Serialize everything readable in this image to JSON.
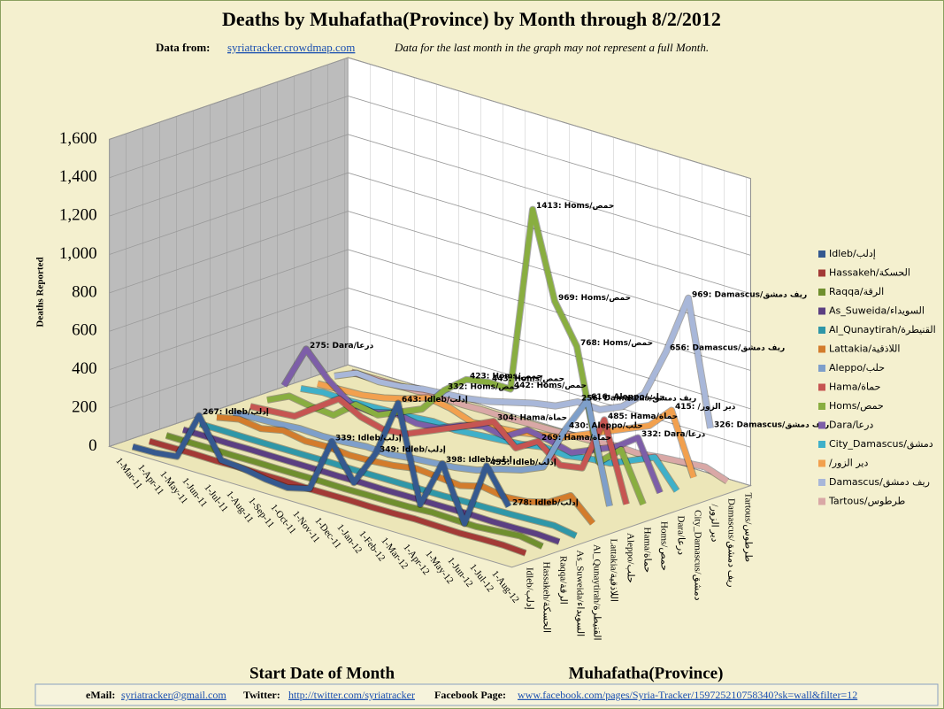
{
  "chart_data": {
    "type": "line3d",
    "title": "Deaths by Muhafatha(Province) by Month through 8/2/2012",
    "source_label": "Data from:",
    "source_link": "syriatracker.crowdmap.com",
    "subtitle": "Data for the last month  in the graph may not represent a full Month.",
    "y_label": "Deaths Reported",
    "x_label": "Start Date of Month",
    "z_label": "Muhafatha(Province)",
    "footer": {
      "email_label": "eMail:",
      "email": "syriatracker@gmail.com",
      "twitter_label": "Twitter:",
      "twitter": "http://twitter.com/syriatracker",
      "facebook_label": "Facebook  Page:",
      "facebook": "www.facebook.com/pages/Syria-Tracker/159725210758340?sk=wall&filter=12"
    },
    "ylim": [
      0,
      1600
    ],
    "yticks": [
      0,
      200,
      400,
      600,
      800,
      {
        "value": 1000,
        "label": "1,000"
      },
      {
        "value": 1200,
        "label": "1,200"
      },
      {
        "value": 1400,
        "label": "1,400"
      },
      {
        "value": 1600,
        "label": "1,600"
      }
    ],
    "grid": true,
    "categories": [
      "1-Mar-11",
      "1-Apr-11",
      "1-May-11",
      "1-Jun-11",
      "1-Jul-11",
      "1-Aug-11",
      "1-Sep-11",
      "1-Oct-11",
      "1-Nov-11",
      "1-Dec-11",
      "1-Jan-12",
      "1-Feb-12",
      "1-Mar-12",
      "1-Apr-12",
      "1-May-12",
      "1-Jun-12",
      "1-Jul-12",
      "1-Aug-12"
    ],
    "series": [
      {
        "name": "Idleb/إدلب",
        "color": "#35598f",
        "values": [
          2,
          5,
          20,
          267,
          70,
          60,
          40,
          30,
          60,
          339,
          160,
          349,
          643,
          150,
          398,
          120,
          455,
          278
        ],
        "value_labels": [
          null,
          null,
          null,
          "267: Idleb/إدلب",
          null,
          null,
          null,
          null,
          null,
          "339: Idleb/إدلب",
          null,
          "349: Idleb/إدلب",
          "643: Idleb/إدلب",
          null,
          "398: Idleb/إدلب",
          null,
          "455: Idleb/إدلب",
          "278: Idleb/إدلب"
        ]
      },
      {
        "name": "Hassakeh/الحسكة",
        "color": "#a33a36",
        "values": [
          0,
          2,
          3,
          2,
          5,
          3,
          4,
          2,
          3,
          5,
          4,
          6,
          10,
          8,
          6,
          10,
          12,
          5
        ]
      },
      {
        "name": "Raqqa/الرقة",
        "color": "#6f8f2e",
        "values": [
          0,
          0,
          1,
          0,
          2,
          1,
          2,
          3,
          2,
          4,
          5,
          8,
          15,
          12,
          10,
          20,
          30,
          10
        ]
      },
      {
        "name": "As_Suweida/السويداء",
        "color": "#5b3f82",
        "values": [
          0,
          1,
          0,
          2,
          1,
          1,
          2,
          1,
          3,
          2,
          4,
          5,
          6,
          8,
          5,
          7,
          10,
          4
        ]
      },
      {
        "name": "Al_Qunaytirah/القنيطرة",
        "color": "#2f97a8",
        "values": [
          0,
          1,
          0,
          0,
          1,
          2,
          3,
          2,
          3,
          4,
          5,
          6,
          10,
          12,
          15,
          20,
          25,
          5
        ]
      },
      {
        "name": "Lattakia/اللاذقية",
        "color": "#d37c2c",
        "values": [
          5,
          30,
          15,
          40,
          20,
          25,
          15,
          20,
          30,
          50,
          40,
          30,
          60,
          40,
          50,
          80,
          150,
          40
        ]
      },
      {
        "name": "Aleppo/حلب",
        "color": "#7e9fca",
        "values": [
          0,
          5,
          10,
          20,
          15,
          20,
          30,
          25,
          40,
          50,
          60,
          80,
          120,
          150,
          200,
          430,
          616,
          100
        ],
        "value_labels": [
          null,
          null,
          null,
          null,
          null,
          null,
          null,
          null,
          null,
          null,
          null,
          null,
          null,
          null,
          null,
          "430: Aleppo/حلب",
          "616: Aleppo/حلب",
          null
        ]
      },
      {
        "name": "Hama/حماة",
        "color": "#c65552",
        "values": [
          2,
          10,
          20,
          100,
          180,
          120,
          90,
          100,
          150,
          200,
          250,
          304,
          200,
          269,
          180,
          200,
          485,
          80
        ],
        "value_labels": [
          null,
          null,
          null,
          null,
          null,
          null,
          null,
          null,
          null,
          null,
          null,
          "304: Hama/حماة",
          null,
          "269: Hama/حماة",
          null,
          null,
          "485: Hama/حماة",
          null
        ]
      },
      {
        "name": "Homs/حمص",
        "color": "#89ae40",
        "values": [
          5,
          60,
          40,
          30,
          120,
          100,
          150,
          200,
          332,
          423,
          443,
          442,
          1413,
          969,
          768,
          200,
          300,
          50
        ],
        "value_labels": [
          null,
          null,
          null,
          null,
          null,
          null,
          null,
          null,
          "332: Homs/حمص",
          "423: Homs/حمص",
          "443: Homs/حمص",
          "442: Homs/حمص",
          "1413: Homs/حمص",
          "969: Homs/حمص",
          "768: Homs/حمص",
          null,
          null,
          null
        ]
      },
      {
        "name": "Dara/درعا",
        "color": "#7d5ea8",
        "values": [
          50,
          275,
          150,
          60,
          50,
          80,
          60,
          70,
          120,
          150,
          130,
          200,
          180,
          150,
          200,
          250,
          332,
          80
        ],
        "value_labels": [
          null,
          "275: Dara/درعا",
          null,
          null,
          null,
          null,
          null,
          null,
          null,
          null,
          null,
          null,
          null,
          null,
          null,
          null,
          "332: Dara/درعا",
          null
        ]
      },
      {
        "name": "City_Damascus/دمشق",
        "color": "#3fb0c9",
        "values": [
          5,
          20,
          15,
          20,
          25,
          30,
          40,
          30,
          40,
          50,
          60,
          80,
          70,
          90,
          100,
          150,
          200,
          60
        ]
      },
      {
        "name": "/دير الزور",
        "color": "#f2a04e",
        "values": [
          0,
          5,
          10,
          30,
          60,
          100,
          80,
          40,
          50,
          60,
          80,
          100,
          150,
          200,
          250,
          300,
          415,
          100
        ],
        "value_labels": [
          null,
          null,
          null,
          null,
          null,
          null,
          null,
          null,
          null,
          null,
          null,
          null,
          null,
          null,
          null,
          null,
          "415: /دير الزور",
          null
        ]
      },
      {
        "name": "Damascus/ريف دمشق",
        "color": "#a8b7d9",
        "values": [
          10,
          60,
          50,
          60,
          80,
          90,
          100,
          120,
          150,
          180,
          200,
          256,
          250,
          300,
          400,
          656,
          969,
          326
        ],
        "value_labels": [
          null,
          null,
          null,
          null,
          null,
          null,
          null,
          null,
          null,
          null,
          null,
          "256: Damascus/ريف دمشق",
          null,
          null,
          null,
          "656: Damascus/ريف دمشق",
          "969: Damascus/ريف دمشق",
          "326: Damascus/ريف دمشق"
        ]
      },
      {
        "name": "Tartous/طرطوس",
        "color": "#d9a8a6",
        "values": [
          0,
          2,
          3,
          5,
          10,
          5,
          8,
          6,
          10,
          12,
          15,
          20,
          30,
          25,
          40,
          50,
          60,
          20
        ]
      }
    ]
  }
}
